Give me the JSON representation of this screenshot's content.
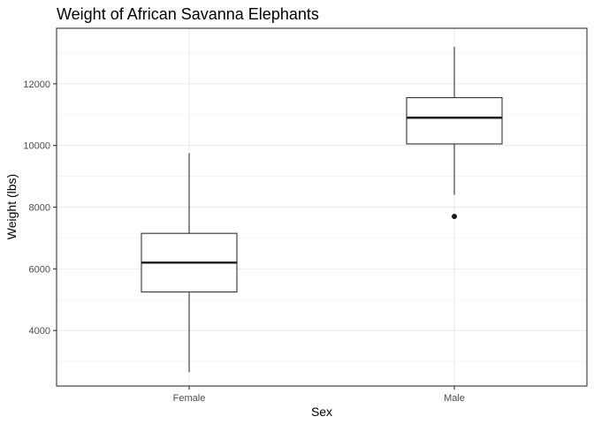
{
  "chart_data": {
    "type": "box",
    "title": "Weight of African Savanna Elephants",
    "xlabel": "Sex",
    "ylabel": "Weight (lbs)",
    "categories": [
      "Female",
      "Male"
    ],
    "ylim": [
      2200,
      13800
    ],
    "yticks": [
      4000,
      6000,
      8000,
      10000,
      12000
    ],
    "ytick_labels": [
      "4000",
      "6000",
      "8000",
      "10000",
      "12000"
    ],
    "grid": true,
    "boxes": [
      {
        "category": "Female",
        "whisker_low": 2650,
        "q1": 5250,
        "median": 6200,
        "q3": 7150,
        "whisker_high": 9750,
        "outliers": []
      },
      {
        "category": "Male",
        "whisker_low": 8400,
        "q1": 10050,
        "median": 10900,
        "q3": 11550,
        "whisker_high": 13200,
        "outliers": [
          7700
        ]
      }
    ]
  },
  "colors": {
    "panel_border": "#333333",
    "grid_major": "#ebebeb",
    "grid_minor": "#f5f5f5",
    "box_stroke": "#333333",
    "median_stroke": "#1a1a1a",
    "outlier_fill": "#1a1a1a"
  }
}
